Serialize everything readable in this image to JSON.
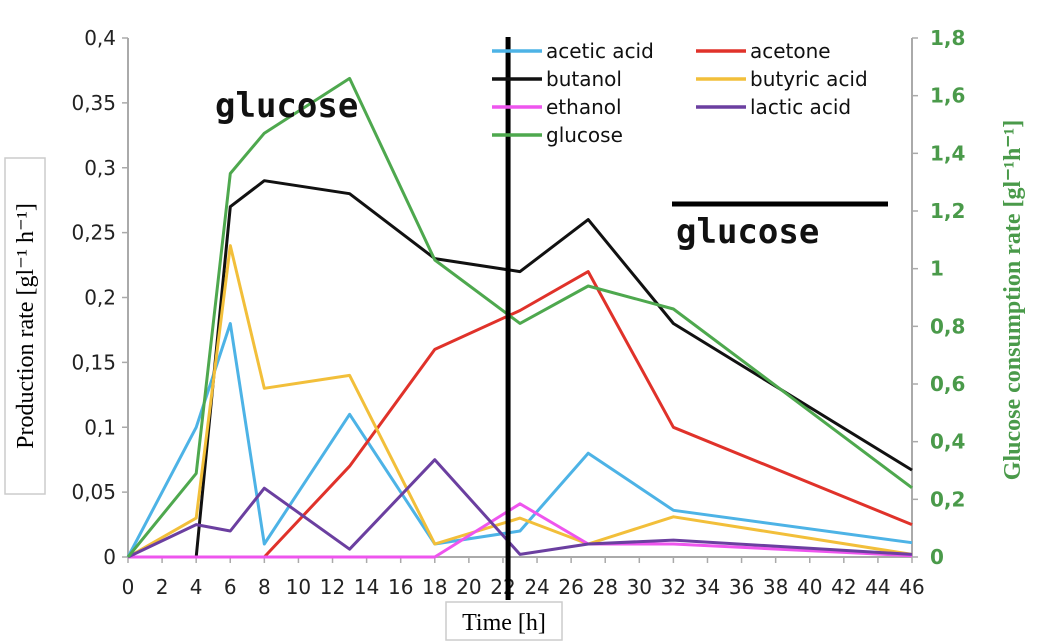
{
  "chart_data": {
    "type": "line",
    "xlabel": "Time [h]",
    "ylabel": "Production rate [gl⁻¹ h⁻¹]",
    "y2label": "Glucose consumption rate [gl⁻¹h⁻¹]",
    "xlim": [
      0,
      46
    ],
    "ylim": [
      0,
      0.4
    ],
    "y2lim": [
      0,
      1.8
    ],
    "xticks": [
      "0",
      "2",
      "4",
      "6",
      "8",
      "10",
      "12",
      "14",
      "16",
      "18",
      "20",
      "22",
      "24",
      "26",
      "28",
      "30",
      "32",
      "34",
      "36",
      "38",
      "40",
      "42",
      "44",
      "46"
    ],
    "yticks": [
      "0",
      "0,05",
      "0,1",
      "0,15",
      "0,2",
      "0,25",
      "0,3",
      "0,35",
      "0,4"
    ],
    "y2ticks": [
      "0",
      "0,2",
      "0,4",
      "0,6",
      "0,8",
      "1",
      "1,2",
      "1,4",
      "1,6",
      "1,8"
    ],
    "grid": false,
    "legend_position": "top-right",
    "series": [
      {
        "name": "acetic acid",
        "color": "#4db3e6",
        "axis": "left",
        "x": [
          0,
          4,
          6,
          8,
          13,
          18,
          23,
          27,
          32,
          46
        ],
        "y": [
          0,
          0.1,
          0.18,
          0.01,
          0.11,
          0.01,
          0.02,
          0.08,
          0.036,
          0.011
        ]
      },
      {
        "name": "acetone",
        "color": "#e0322a",
        "axis": "left",
        "x": [
          0,
          4,
          6,
          8,
          13,
          18,
          23,
          27,
          32,
          46
        ],
        "y": [
          0,
          0,
          0,
          0,
          0.07,
          0.16,
          0.19,
          0.22,
          0.1,
          0.025
        ]
      },
      {
        "name": "butanol",
        "color": "#111111",
        "axis": "left",
        "x": [
          4,
          6,
          8,
          13,
          18,
          23,
          27,
          32,
          46
        ],
        "y": [
          0,
          0.27,
          0.29,
          0.28,
          0.23,
          0.22,
          0.26,
          0.18,
          0.067
        ]
      },
      {
        "name": "butyric acid",
        "color": "#f2bf3a",
        "axis": "left",
        "x": [
          0,
          4,
          6,
          8,
          13,
          18,
          23,
          27,
          32,
          46
        ],
        "y": [
          0,
          0.03,
          0.24,
          0.13,
          0.14,
          0.01,
          0.03,
          0.01,
          0.031,
          0.002
        ]
      },
      {
        "name": "ethanol",
        "color": "#ee55ee",
        "axis": "left",
        "x": [
          0,
          4,
          6,
          8,
          13,
          18,
          23,
          27,
          32,
          46
        ],
        "y": [
          0,
          0,
          0,
          0,
          0,
          0,
          0.041,
          0.01,
          0.01,
          0.001
        ]
      },
      {
        "name": "lactic acid",
        "color": "#6b3fa0",
        "axis": "left",
        "x": [
          0,
          4,
          6,
          8,
          13,
          18,
          23,
          27,
          32,
          46
        ],
        "y": [
          0,
          0.025,
          0.02,
          0.053,
          0.006,
          0.075,
          0.002,
          0.01,
          0.013,
          0.002
        ]
      },
      {
        "name": "glucose",
        "color": "#4ea84e",
        "axis": "right",
        "x": [
          0,
          4,
          6,
          8,
          13,
          18,
          23,
          27,
          32,
          46
        ],
        "y": [
          0,
          0.29,
          1.33,
          1.47,
          1.66,
          1.03,
          0.81,
          0.94,
          0.86,
          0.24
        ]
      }
    ],
    "annotations": [
      {
        "text": "glucose",
        "overline": false
      },
      {
        "text": "glucose",
        "overline": true
      }
    ],
    "vertical_line_x": 22.3
  }
}
